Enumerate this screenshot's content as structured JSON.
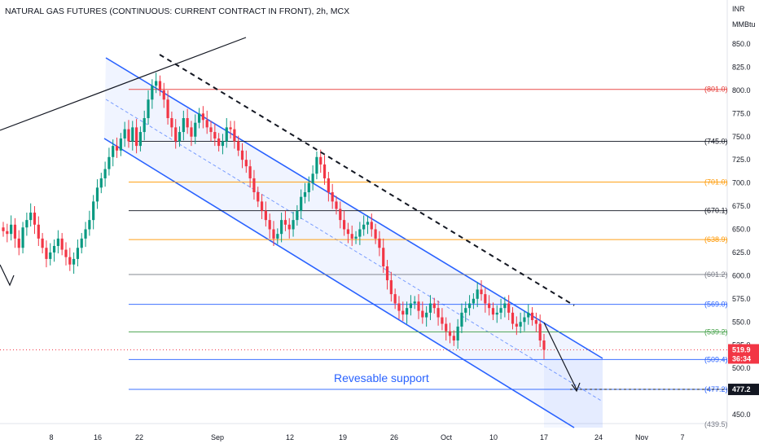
{
  "header": {
    "title": "NATURAL GAS FUTURES (CONTINUOUS: CURRENT CONTRACT IN FRONT), 2h, MCX",
    "unit_line1": "INR",
    "unit_line2": "MMBtu"
  },
  "chart_data": {
    "type": "candlestick",
    "ylim": [
      440,
      870
    ],
    "y_ticks": [
      450,
      475,
      500,
      525,
      550,
      575,
      600,
      625,
      650,
      675,
      700,
      725,
      750,
      775,
      800,
      825,
      850
    ],
    "y_tick_labels": [
      "450.0",
      "475.0",
      "500.0",
      "525.0",
      "550.0",
      "575.0",
      "600.0",
      "625.0",
      "650.0",
      "675.0",
      "700.0",
      "725.0",
      "750.0",
      "775.0",
      "800.0",
      "825.0",
      "850.0"
    ],
    "x_ticks": [
      "8",
      "16",
      "22",
      "Sep",
      "12",
      "19",
      "26",
      "Oct",
      "10",
      "17",
      "24",
      "Nov",
      "7"
    ],
    "levels": [
      {
        "label": "(801.0)",
        "value": 801.0,
        "color": "#e53935"
      },
      {
        "label": "(745.0)",
        "value": 745.0,
        "color": "#131722"
      },
      {
        "label": "(701.0)",
        "value": 701.0,
        "color": "#ff9800"
      },
      {
        "label": "(670.1)",
        "value": 670.1,
        "color": "#131722"
      },
      {
        "label": "(638.9)",
        "value": 638.9,
        "color": "#ff9800"
      },
      {
        "label": "(601.2)",
        "value": 601.2,
        "color": "#787b86"
      },
      {
        "label": "(569.0)",
        "value": 569.0,
        "color": "#2962ff"
      },
      {
        "label": "(539.2)",
        "value": 539.2,
        "color": "#43a047"
      },
      {
        "label": "(509.4)",
        "value": 509.4,
        "color": "#2962ff"
      },
      {
        "label": "(477.2)",
        "value": 477.2,
        "color": "#2962ff"
      },
      {
        "label": "(439.5)",
        "value": 439.5,
        "color": "#787b86"
      }
    ],
    "price_tag": {
      "value": "519.9",
      "countdown": "36:34",
      "color": "#f23645"
    },
    "support_tag": {
      "value": "477.2",
      "color": "#131722"
    },
    "annotation": "Revesable support",
    "close_series": [
      648,
      645,
      655,
      640,
      630,
      652,
      660,
      668,
      655,
      640,
      630,
      618,
      625,
      632,
      640,
      628,
      620,
      612,
      618,
      630,
      640,
      650,
      660,
      680,
      695,
      705,
      715,
      728,
      740,
      735,
      748,
      758,
      745,
      760,
      740,
      755,
      770,
      790,
      805,
      810,
      800,
      790,
      770,
      760,
      745,
      755,
      770,
      760,
      750,
      765,
      775,
      768,
      760,
      755,
      748,
      740,
      745,
      760,
      758,
      745,
      735,
      725,
      718,
      705,
      690,
      680,
      670,
      660,
      650,
      640,
      645,
      660,
      655,
      650,
      660,
      670,
      685,
      690,
      700,
      710,
      728,
      720,
      705,
      690,
      680,
      672,
      660,
      650,
      645,
      640,
      642,
      650,
      655,
      658,
      650,
      640,
      630,
      610,
      595,
      580,
      570,
      562,
      558,
      565,
      570,
      572,
      562,
      555,
      560,
      570,
      565,
      555,
      548,
      540,
      535,
      530,
      545,
      560,
      565,
      570,
      575,
      585,
      580,
      570,
      565,
      558,
      560,
      565,
      570,
      560,
      548,
      545,
      550,
      555,
      560,
      552,
      548,
      530,
      519.9
    ]
  }
}
